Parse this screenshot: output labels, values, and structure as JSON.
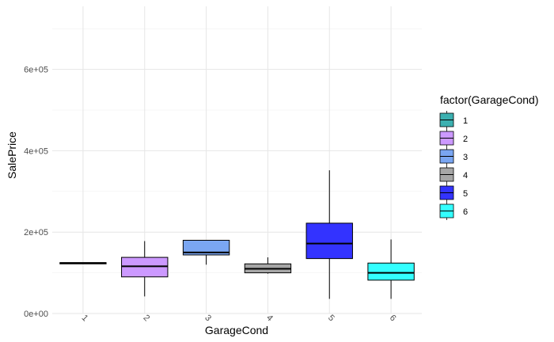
{
  "chart_data": {
    "type": "boxplot",
    "xlabel": "GarageCond",
    "ylabel": "SalePrice",
    "ylim": [
      0,
      755000
    ],
    "y_ticks": [
      {
        "value": 0,
        "label": "0e+00"
      },
      {
        "value": 200000,
        "label": "2e+05"
      },
      {
        "value": 400000,
        "label": "4e+05"
      },
      {
        "value": 600000,
        "label": "6e+05"
      }
    ],
    "categories": [
      "1",
      "2",
      "3",
      "4",
      "5",
      "6"
    ],
    "boxes": [
      {
        "category": "1",
        "color": "#3cb0b0",
        "min": 122000,
        "q1": 122000,
        "median": 124000,
        "q3": 125000,
        "max": 125000
      },
      {
        "category": "2",
        "color": "#cc99ff",
        "min": 42000,
        "q1": 90000,
        "median": 116000,
        "q3": 138000,
        "max": 178000
      },
      {
        "category": "3",
        "color": "#7aa6f2",
        "min": 120000,
        "q1": 144000,
        "median": 150000,
        "q3": 180000,
        "max": 180000
      },
      {
        "category": "4",
        "color": "#a6a6a6",
        "min": 98000,
        "q1": 100000,
        "median": 110000,
        "q3": 122000,
        "max": 138000
      },
      {
        "category": "5",
        "color": "#3333ff",
        "min": 36000,
        "q1": 135000,
        "median": 172000,
        "q3": 222000,
        "max": 352000
      },
      {
        "category": "6",
        "color": "#33ffff",
        "min": 36000,
        "q1": 82000,
        "median": 100000,
        "q3": 124000,
        "max": 182000
      }
    ],
    "grid": true,
    "legend": {
      "title": "factor(GarageCond)",
      "position": "right",
      "items": [
        "1",
        "2",
        "3",
        "4",
        "5",
        "6"
      ]
    }
  }
}
